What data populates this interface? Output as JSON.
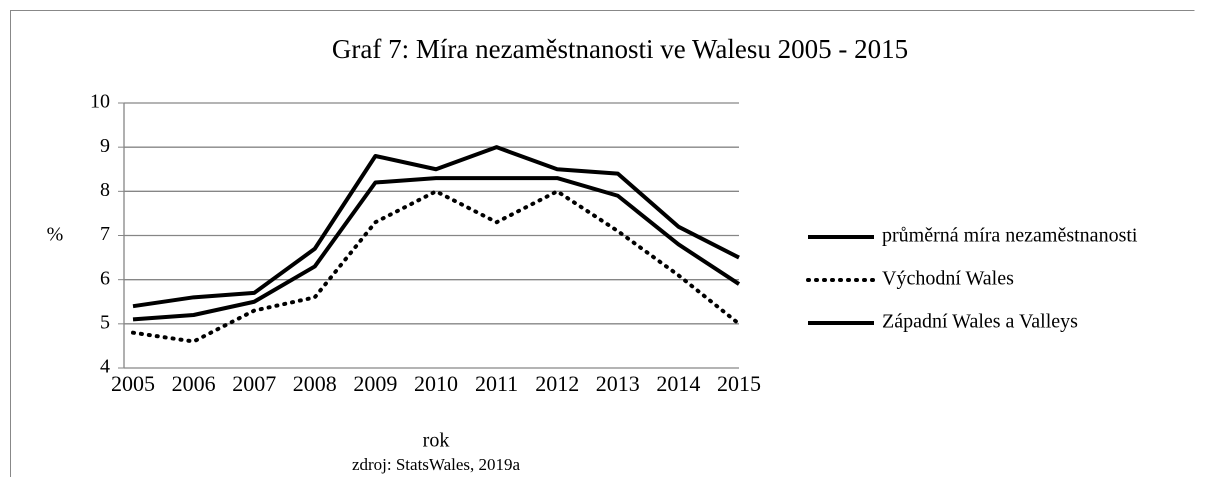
{
  "chart_data": {
    "type": "line",
    "title": "Graf 7: Míra nezaměstnanosti ve Walesu 2005 - 2015",
    "y_label": "%",
    "x_label": "rok",
    "source": "zdroj: StatsWales, 2019a",
    "categories": [
      "2005",
      "2006",
      "2007",
      "2008",
      "2009",
      "2010",
      "2011",
      "2012",
      "2013",
      "2014",
      "2015"
    ],
    "series": [
      {
        "name": "průměrná míra nezaměstnanosti",
        "color": "#000000",
        "line_style": "solid",
        "values": [
          5.1,
          5.2,
          5.5,
          6.3,
          8.2,
          8.3,
          8.3,
          8.3,
          7.9,
          6.8,
          5.9
        ]
      },
      {
        "name": "Východní Wales",
        "color": "#000000",
        "line_style": "dotted",
        "values": [
          4.8,
          4.6,
          5.3,
          5.6,
          7.3,
          8.0,
          7.3,
          8.0,
          7.1,
          6.1,
          5.0
        ]
      },
      {
        "name": "Západní Wales a Valleys",
        "color": "#000000",
        "line_style": "solid",
        "values": [
          5.4,
          5.6,
          5.7,
          6.7,
          8.8,
          8.5,
          9.0,
          8.5,
          8.4,
          7.2,
          6.5
        ]
      }
    ],
    "ylim": [
      4,
      10
    ],
    "yticks": [
      4,
      5,
      6,
      7,
      8,
      9,
      10
    ],
    "grid": true,
    "legend": "right"
  }
}
